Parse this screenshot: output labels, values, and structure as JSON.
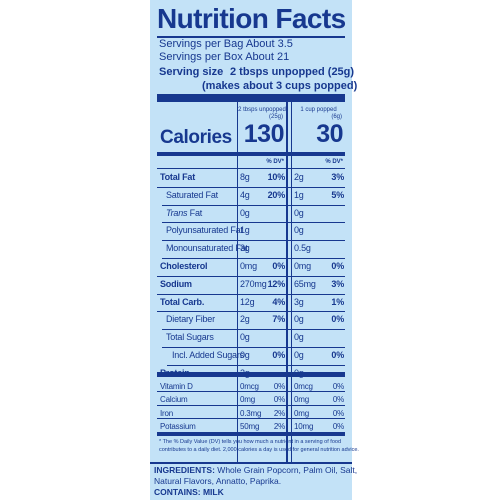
{
  "title": "Nutrition Facts",
  "servings": [
    "Servings per Bag About 3.5",
    "Servings per Box About 21"
  ],
  "serving_size": {
    "label": "Serving size",
    "value": "2 tbsps unpopped (25g)",
    "note": "(makes about 3 cups popped)"
  },
  "columns": {
    "col1_header": "2 tbsps unpopped",
    "col1_sub": "(25g)",
    "col2_header": "1 cup popped",
    "col2_sub": "(6g)"
  },
  "calories": {
    "label": "Calories",
    "col1": "130",
    "col2": "30"
  },
  "dv_label": "% DV*",
  "nutrients": [
    {
      "name": "Total Fat",
      "amt1": "8g",
      "dv1": "10%",
      "amt2": "2g",
      "dv2": "3%"
    },
    {
      "name": "Saturated Fat",
      "amt1": "4g",
      "dv1": "20%",
      "amt2": "1g",
      "dv2": "5%"
    },
    {
      "name_prefix": "Trans",
      "name": " Fat",
      "amt1": "0g",
      "dv1": "",
      "amt2": "0g",
      "dv2": ""
    },
    {
      "name": "Polyunsaturated Fat",
      "amt1": "1g",
      "dv1": "",
      "amt2": "0g",
      "dv2": ""
    },
    {
      "name": "Monounsaturated Fat",
      "amt1": "3g",
      "dv1": "",
      "amt2": "0.5g",
      "dv2": ""
    },
    {
      "name": "Cholesterol",
      "amt1": "0mg",
      "dv1": "0%",
      "amt2": "0mg",
      "dv2": "0%"
    },
    {
      "name": "Sodium",
      "amt1": "270mg",
      "dv1": "12%",
      "amt2": "65mg",
      "dv2": "3%"
    },
    {
      "name": "Total Carb.",
      "amt1": "12g",
      "dv1": "4%",
      "amt2": "3g",
      "dv2": "1%"
    },
    {
      "name": "Dietary Fiber",
      "amt1": "2g",
      "dv1": "7%",
      "amt2": "0g",
      "dv2": "0%"
    },
    {
      "name": "Total Sugars",
      "amt1": "0g",
      "dv1": "",
      "amt2": "0g",
      "dv2": ""
    },
    {
      "name": "Incl. Added Sugars",
      "amt1": "0g",
      "dv1": "0%",
      "amt2": "0g",
      "dv2": "0%"
    },
    {
      "name": "Protein",
      "amt1": "2g",
      "dv1": "",
      "amt2": "0g",
      "dv2": ""
    }
  ],
  "vitamins": [
    {
      "name": "Vitamin D",
      "amt1": "0mcg",
      "dv1": "0%",
      "amt2": "0mcg",
      "dv2": "0%"
    },
    {
      "name": "Calcium",
      "amt1": "0mg",
      "dv1": "0%",
      "amt2": "0mg",
      "dv2": "0%"
    },
    {
      "name": "Iron",
      "amt1": "0.3mg",
      "dv1": "2%",
      "amt2": "0mg",
      "dv2": "0%"
    },
    {
      "name": "Potassium",
      "amt1": "50mg",
      "dv1": "2%",
      "amt2": "10mg",
      "dv2": "0%"
    }
  ],
  "footnote_line1": "* The % Daily Value (DV) tells you how much a nutrient in a serving of food",
  "footnote_line2": "contributes to a daily diet. 2,000 calories a day is used for general nutrition advice.",
  "ingredients": {
    "label": "INGREDIENTS:",
    "line1": "Whole Grain Popcorn, Palm Oil, Salt,",
    "line2": "Natural Flavors, Annatto, Paprika."
  },
  "contains": {
    "label": "CONTAINS:",
    "value": "MILK"
  },
  "colors": {
    "panel_background": "#c3e2f7",
    "ink": "#17388f"
  }
}
